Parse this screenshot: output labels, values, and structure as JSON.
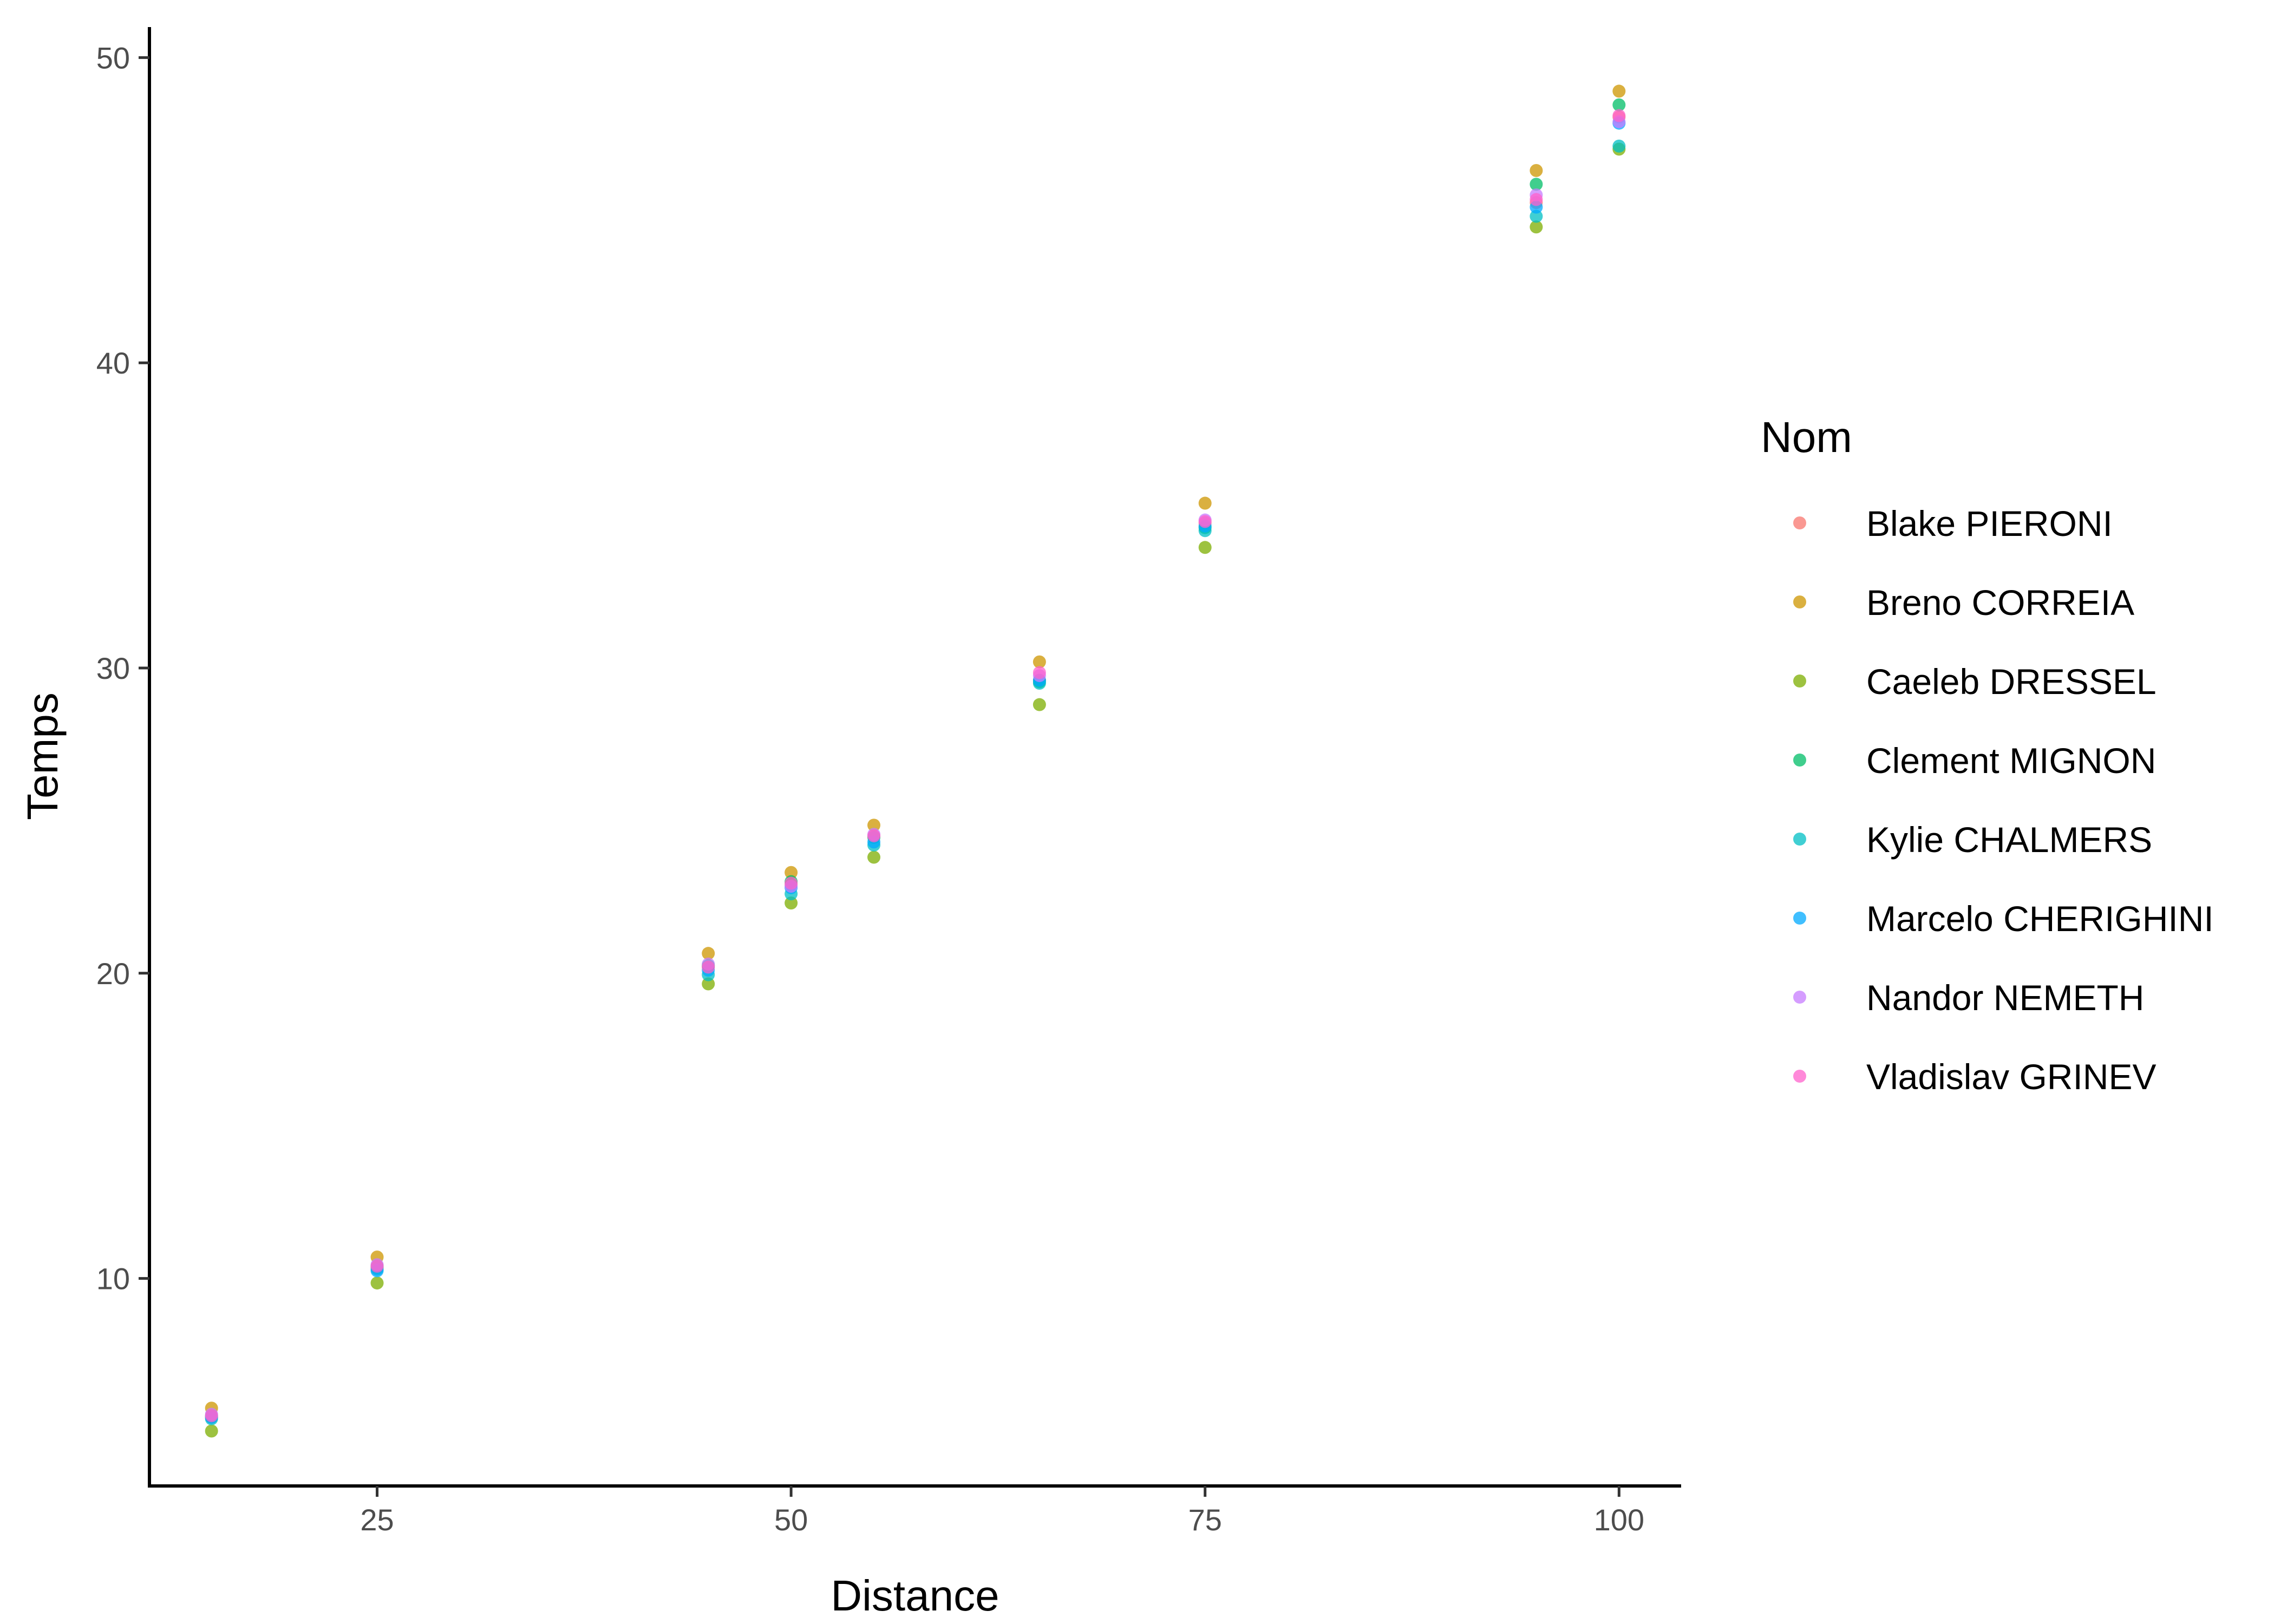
{
  "chart_data": {
    "type": "scatter",
    "title": "",
    "xlabel": "Distance",
    "ylabel": "Temps",
    "xlim": [
      11.25,
      103.75
    ],
    "ylim": [
      3.2,
      51
    ],
    "x_ticks": [
      25,
      50,
      75,
      100
    ],
    "y_ticks": [
      10,
      20,
      30,
      40,
      50
    ],
    "grid": false,
    "legend_title": "Nom",
    "legend_position": "right",
    "series": [
      {
        "name": "Blake PIERONI",
        "color": "#F8766D",
        "x": [
          15,
          25,
          45,
          50,
          55,
          65,
          75,
          95,
          100
        ],
        "y": [
          5.45,
          10.35,
          20.2,
          22.9,
          24.5,
          29.6,
          34.75,
          45.25,
          48.05
        ]
      },
      {
        "name": "Breno CORREIA",
        "color": "#CD9600",
        "x": [
          15,
          25,
          45,
          50,
          55,
          65,
          75,
          95,
          100
        ],
        "y": [
          5.75,
          10.7,
          20.65,
          23.3,
          24.85,
          30.2,
          35.4,
          46.3,
          48.9
        ]
      },
      {
        "name": "Caeleb DRESSEL",
        "color": "#7CAE00",
        "x": [
          15,
          25,
          45,
          50,
          55,
          65,
          75,
          95,
          100
        ],
        "y": [
          5.0,
          9.85,
          19.65,
          22.3,
          23.8,
          28.8,
          33.95,
          44.45,
          47.0
        ]
      },
      {
        "name": "Clement MIGNON",
        "color": "#00BE67",
        "x": [
          15,
          25,
          45,
          50,
          55,
          65,
          75,
          95,
          100
        ],
        "y": [
          5.5,
          10.4,
          20.25,
          23.0,
          24.45,
          29.55,
          34.6,
          45.85,
          48.45
        ]
      },
      {
        "name": "Kylie CHALMERS",
        "color": "#00BFC4",
        "x": [
          15,
          25,
          45,
          50,
          55,
          65,
          75,
          95,
          100
        ],
        "y": [
          5.4,
          10.3,
          19.95,
          22.6,
          24.2,
          29.5,
          34.5,
          44.8,
          47.1
        ]
      },
      {
        "name": "Marcelo CHERIGHINI",
        "color": "#00A9FF",
        "x": [
          15,
          25,
          45,
          50,
          55,
          65,
          75,
          95,
          100
        ],
        "y": [
          5.45,
          10.25,
          20.1,
          22.8,
          24.3,
          29.6,
          34.65,
          45.1,
          47.85
        ]
      },
      {
        "name": "Nandor NEMETH",
        "color": "#C77CFF",
        "x": [
          15,
          25,
          45,
          50,
          55,
          65,
          75,
          95,
          100
        ],
        "y": [
          5.55,
          10.45,
          20.3,
          22.85,
          24.55,
          29.75,
          34.85,
          45.5,
          47.9
        ]
      },
      {
        "name": "Vladislav GRINEV",
        "color": "#FF61CC",
        "x": [
          15,
          25,
          45,
          50,
          55,
          65,
          75,
          95,
          100
        ],
        "y": [
          5.5,
          10.4,
          20.2,
          22.95,
          24.5,
          29.85,
          34.8,
          45.35,
          48.1
        ]
      }
    ]
  }
}
